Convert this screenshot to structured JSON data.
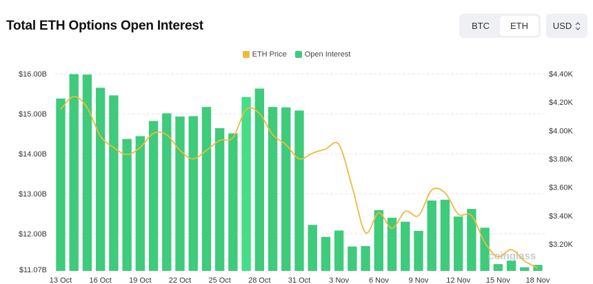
{
  "header": {
    "title": "Total ETH Options Open Interest",
    "coin_toggle": [
      {
        "label": "BTC",
        "active": false
      },
      {
        "label": "ETH",
        "active": true
      }
    ],
    "currency_select": {
      "value": "USD",
      "icon": "chevron-up-down-icon"
    }
  },
  "watermark": "coinglass",
  "colors": {
    "eth_price": "#f0b93b",
    "open_interest": "#3ecb7b",
    "open_interest_highlight": "#44dd88"
  },
  "chart_data": {
    "type": "bar+line",
    "legend": [
      "ETH Price",
      "Open Interest"
    ],
    "legend_placement": "top-center",
    "grid": true,
    "categories": [
      "13 Oct",
      "14 Oct",
      "15 Oct",
      "16 Oct",
      "17 Oct",
      "18 Oct",
      "19 Oct",
      "20 Oct",
      "21 Oct",
      "22 Oct",
      "23 Oct",
      "24 Oct",
      "25 Oct",
      "26 Oct",
      "27 Oct",
      "28 Oct",
      "29 Oct",
      "30 Oct",
      "31 Oct",
      "1 Nov",
      "2 Nov",
      "3 Nov",
      "4 Nov",
      "5 Nov",
      "6 Nov",
      "7 Nov",
      "8 Nov",
      "9 Nov",
      "10 Nov",
      "11 Nov",
      "12 Nov",
      "13 Nov",
      "14 Nov",
      "15 Nov",
      "16 Nov",
      "17 Nov",
      "18 Nov"
    ],
    "x_tick_labels": [
      "13 Oct",
      "16 Oct",
      "19 Oct",
      "22 Oct",
      "25 Oct",
      "28 Oct",
      "31 Oct",
      "3 Nov",
      "6 Nov",
      "9 Nov",
      "12 Nov",
      "15 Nov",
      "18 Nov"
    ],
    "y_left": {
      "ticks": [
        "$11.07B",
        "$12.00B",
        "$13.00B",
        "$14.00B",
        "$15.00B",
        "$16.00B"
      ],
      "range": [
        11.07,
        16.0
      ],
      "unit": "B USD"
    },
    "y_right": {
      "ticks": [
        "$3.20K",
        "$3.40K",
        "$3.60K",
        "$3.80K",
        "$4.00K",
        "$4.20K",
        "$4.40K"
      ],
      "range": [
        3.01,
        4.4
      ],
      "unit": "K USD"
    },
    "series": [
      {
        "name": "Open Interest",
        "type": "bar",
        "axis": "left",
        "values": [
          15.38,
          15.99,
          15.98,
          15.65,
          15.46,
          14.37,
          14.44,
          14.82,
          15.01,
          14.93,
          14.94,
          15.17,
          14.64,
          14.51,
          15.42,
          15.63,
          15.17,
          15.16,
          15.08,
          12.22,
          11.92,
          12.08,
          11.68,
          11.69,
          12.59,
          12.4,
          12.3,
          12.07,
          12.83,
          12.85,
          12.43,
          12.62,
          12.15,
          11.24,
          11.33,
          11.16,
          11.22
        ]
      },
      {
        "name": "ETH Price",
        "type": "line",
        "axis": "right",
        "values": [
          4.15,
          4.24,
          4.16,
          3.96,
          3.88,
          3.83,
          3.88,
          3.98,
          3.97,
          3.86,
          3.8,
          3.86,
          3.93,
          3.95,
          4.15,
          4.12,
          3.97,
          3.9,
          3.8,
          3.84,
          3.87,
          3.9,
          3.6,
          3.28,
          3.42,
          3.31,
          3.43,
          3.4,
          3.58,
          3.56,
          3.41,
          3.4,
          3.21,
          3.11,
          3.16,
          3.08,
          3.03
        ]
      }
    ],
    "highlighted_category": "27 Oct"
  }
}
